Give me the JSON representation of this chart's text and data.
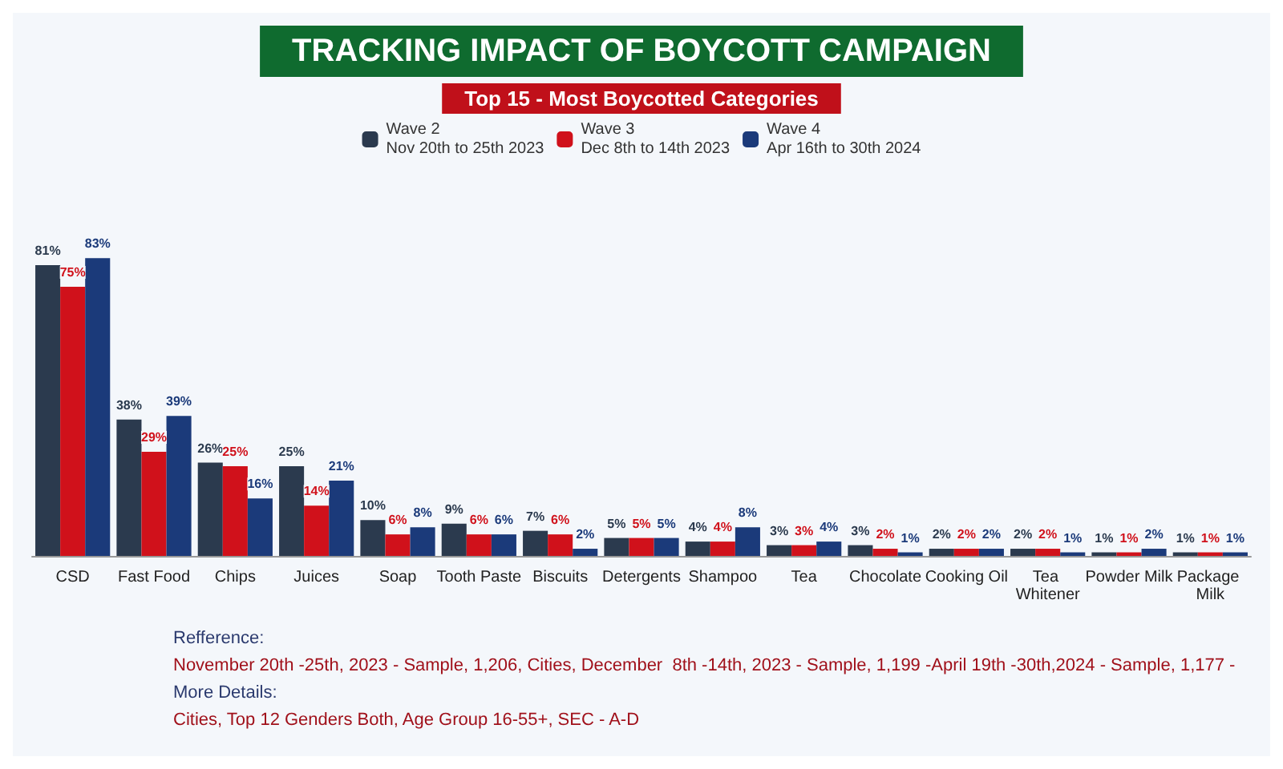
{
  "chart_data": {
    "type": "bar",
    "title": "TRACKING IMPACT OF BOYCOTT CAMPAIGN",
    "subtitle": "Top 15 - Most Boycotted Categories",
    "categories": [
      "CSD",
      "Fast Food",
      "Chips",
      "Juices",
      "Soap",
      "Tooth Paste",
      "Biscuits",
      "Detergents",
      "Shampoo",
      "Tea",
      "Chocolate",
      "Cooking Oil",
      "Tea Whitener",
      "Powder Milk",
      "Package Milk"
    ],
    "series": [
      {
        "name": "Wave 2\nNov 20th to 25th 2023",
        "color": "#2b3a4e",
        "values": [
          81,
          38,
          26,
          25,
          10,
          9,
          7,
          5,
          4,
          3,
          3,
          2,
          2,
          1,
          1
        ],
        "value_labels": [
          "81%",
          "38%",
          "26%",
          "25%",
          "10%",
          "9%",
          "7%",
          "5%",
          "4%",
          "3%",
          "3%",
          "2%",
          "2%",
          "1%",
          "1%"
        ]
      },
      {
        "name": "Wave 3\nDec 8th to 14th 2023",
        "color": "#d0111b",
        "values": [
          75,
          29,
          25,
          14,
          6,
          6,
          6,
          5,
          4,
          3,
          2,
          2,
          2,
          1,
          1
        ],
        "value_labels": [
          "75%",
          "29%",
          "25%",
          "14%",
          "6%",
          "6%",
          "6%",
          "5%",
          "4%",
          "3%",
          "2%",
          "2%",
          "2%",
          "1%",
          "1%"
        ]
      },
      {
        "name": "Wave 4\nApr 16th to 30th 2024",
        "color": "#1b3a7a",
        "values": [
          83,
          39,
          16,
          21,
          8,
          6,
          2,
          5,
          8,
          4,
          1,
          2,
          1,
          2,
          1
        ],
        "value_labels": [
          "83%",
          "39%",
          "16%",
          "21%",
          "8%",
          "6%",
          "2%",
          "5%",
          "8%",
          "4%",
          "1%",
          "2%",
          "1%",
          "2%",
          "1%"
        ]
      }
    ],
    "legend": "top",
    "grid": false,
    "annotations": [
      "Refference:",
      "November 20th -25th, 2023 - Sample, 1,206, Cities, December  8th -14th, 2023 - Sample, 1,199 -April 19th -30th,2024 - Sample, 1,177 -",
      "More Details:",
      "Cities, Top 12 Genders Both, Age Group 16-55+, SEC - A-D"
    ]
  }
}
